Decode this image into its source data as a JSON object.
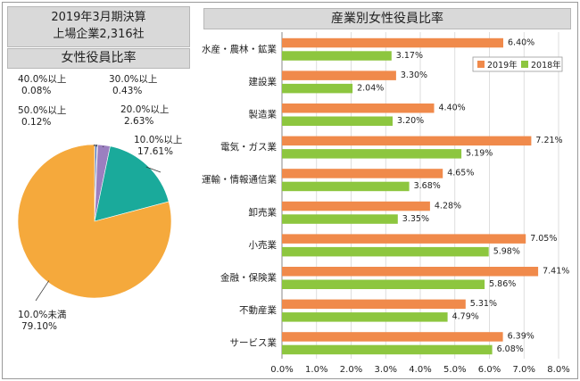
{
  "left_panel": {
    "title_line1": "2019年3月期決算",
    "title_line2": "上場企業2,316社",
    "subtitle": "女性役員比率"
  },
  "chart_data": [
    {
      "type": "pie",
      "title": "女性役員比率",
      "slices": [
        {
          "label": "10.0%未満",
          "value": 79.1,
          "text": "79.10%",
          "color": "#f5a93c"
        },
        {
          "label": "10.0%以上",
          "value": 17.61,
          "text": "17.61%",
          "color": "#1aaa9b"
        },
        {
          "label": "20.0%以上",
          "value": 2.63,
          "text": "2.63%",
          "color": "#9b7fc0"
        },
        {
          "label": "30.0%以上",
          "value": 0.43,
          "text": "0.43%",
          "color": "#4a6fb5"
        },
        {
          "label": "40.0%以上",
          "value": 0.08,
          "text": "0.08%",
          "color": "#c84a4a"
        },
        {
          "label": "50.0%以上",
          "value": 0.12,
          "text": "0.12%",
          "color": "#6b9a3a"
        }
      ]
    },
    {
      "type": "bar",
      "orientation": "horizontal",
      "title": "産業別女性役員比率",
      "categories": [
        "水産・農林・鉱業",
        "建設業",
        "製造業",
        "電気・ガス業",
        "運輸・情報通信業",
        "卸売業",
        "小売業",
        "金融・保険業",
        "不動産業",
        "サービス業"
      ],
      "series": [
        {
          "name": "2019年",
          "color": "#f08a4b",
          "values": [
            6.4,
            3.3,
            4.4,
            7.21,
            4.65,
            4.28,
            7.05,
            7.41,
            5.31,
            6.39
          ],
          "labels": [
            "6.40%",
            "3.30%",
            "4.40%",
            "7.21%",
            "4.65%",
            "4.28%",
            "7.05%",
            "7.41%",
            "5.31%",
            "6.39%"
          ]
        },
        {
          "name": "2018年",
          "color": "#8dc63f",
          "values": [
            3.17,
            2.04,
            3.2,
            5.19,
            3.68,
            3.35,
            5.98,
            5.86,
            4.79,
            6.08
          ],
          "labels": [
            "3.17%",
            "2.04%",
            "3.20%",
            "5.19%",
            "3.68%",
            "3.35%",
            "5.98%",
            "5.86%",
            "4.79%",
            "6.08%"
          ]
        }
      ],
      "xlim": [
        0,
        8
      ],
      "xticks": [
        "0.0%",
        "1.0%",
        "2.0%",
        "3.0%",
        "4.0%",
        "5.0%",
        "6.0%",
        "7.0%",
        "8.0%"
      ],
      "legend_position": "top-right"
    }
  ]
}
